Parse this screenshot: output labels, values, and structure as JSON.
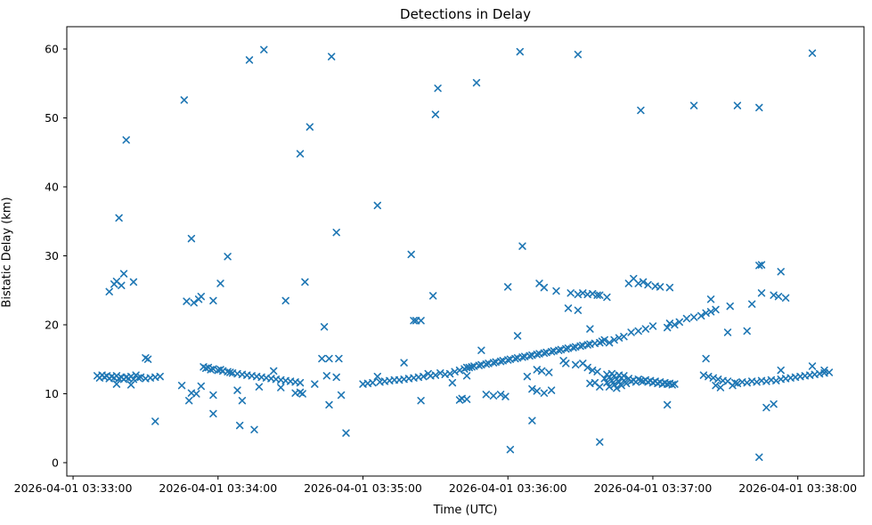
{
  "figure": {
    "title": "Detections in Delay",
    "xlabel": "Time (UTC)",
    "ylabel": "Bistatic Delay (km)"
  },
  "chart_data": {
    "type": "scatter",
    "title": "Detections in Delay",
    "xlabel": "Time (UTC)",
    "ylabel": "Bistatic Delay (km)",
    "date": "2026-04-01",
    "marker": "x",
    "marker_color": "#1f77b4",
    "grid": false,
    "legend": null,
    "x_tick_labels": [
      "2026-04-01 03:33:00",
      "2026-04-01 03:34:00",
      "2026-04-01 03:35:00",
      "2026-04-01 03:36:00",
      "2026-04-01 03:37:00",
      "2026-04-01 03:38:00"
    ],
    "x_tick_seconds": [
      0,
      60,
      120,
      180,
      240,
      300
    ],
    "y_ticks": [
      0,
      10,
      20,
      30,
      40,
      50,
      60
    ],
    "x_axis_seconds_range": [
      -2.6,
      327.4
    ],
    "y_axis_range": [
      -1.94,
      63.23
    ],
    "points": [
      [
        "03:33:10",
        12.6
      ],
      [
        "03:33:11",
        12.3
      ],
      [
        "03:33:12",
        12.7
      ],
      [
        "03:33:13",
        12.4
      ],
      [
        "03:33:14",
        12.6
      ],
      [
        "03:33:15",
        12.2
      ],
      [
        "03:33:16",
        12.5
      ],
      [
        "03:33:17",
        12.3
      ],
      [
        "03:33:18",
        11.4
      ],
      [
        "03:33:18",
        12.6
      ],
      [
        "03:33:19",
        12.2
      ],
      [
        "03:33:20",
        12.4
      ],
      [
        "03:33:21",
        12.1
      ],
      [
        "03:33:22",
        12.4
      ],
      [
        "03:33:23",
        12.2
      ],
      [
        "03:33:24",
        11.3
      ],
      [
        "03:33:24",
        12.5
      ],
      [
        "03:33:25",
        12.1
      ],
      [
        "03:33:26",
        12.7
      ],
      [
        "03:33:27",
        12.3
      ],
      [
        "03:33:28",
        12.4
      ],
      [
        "03:33:30",
        12.2
      ],
      [
        "03:33:32",
        12.3
      ],
      [
        "03:33:34",
        12.4
      ],
      [
        "03:33:36",
        12.5
      ],
      [
        "03:33:15",
        24.8
      ],
      [
        "03:33:17",
        25.9
      ],
      [
        "03:33:18",
        26.3
      ],
      [
        "03:33:20",
        25.7
      ],
      [
        "03:33:21",
        27.4
      ],
      [
        "03:33:25",
        26.2
      ],
      [
        "03:33:19",
        35.5
      ],
      [
        "03:33:22",
        46.8
      ],
      [
        "03:33:30",
        15.2
      ],
      [
        "03:33:31",
        15.0
      ],
      [
        "03:33:34",
        6.0
      ],
      [
        "03:33:46",
        52.6
      ],
      [
        "03:33:49",
        32.5
      ],
      [
        "03:33:47",
        23.4
      ],
      [
        "03:33:50",
        23.2
      ],
      [
        "03:33:52",
        23.7
      ],
      [
        "03:33:53",
        24.1
      ],
      [
        "03:33:58",
        23.5
      ],
      [
        "03:33:45",
        11.2
      ],
      [
        "03:33:48",
        9.0
      ],
      [
        "03:33:49",
        10.1
      ],
      [
        "03:33:51",
        10.0
      ],
      [
        "03:33:53",
        11.1
      ],
      [
        "03:33:58",
        9.8
      ],
      [
        "03:33:58",
        7.1
      ],
      [
        "03:33:54",
        13.9
      ],
      [
        "03:33:55",
        13.7
      ],
      [
        "03:33:56",
        13.8
      ],
      [
        "03:33:57",
        13.5
      ],
      [
        "03:33:58",
        13.6
      ],
      [
        "03:34:00",
        13.4
      ],
      [
        "03:34:01",
        13.5
      ],
      [
        "03:34:02",
        13.3
      ],
      [
        "03:34:04",
        13.2
      ],
      [
        "03:34:05",
        13.1
      ],
      [
        "03:34:06",
        13.0
      ],
      [
        "03:34:08",
        12.9
      ],
      [
        "03:34:10",
        12.8
      ],
      [
        "03:34:12",
        12.7
      ],
      [
        "03:34:14",
        12.6
      ],
      [
        "03:34:16",
        12.5
      ],
      [
        "03:34:18",
        12.4
      ],
      [
        "03:34:20",
        12.3
      ],
      [
        "03:34:22",
        12.2
      ],
      [
        "03:34:24",
        12.1
      ],
      [
        "03:34:26",
        12.0
      ],
      [
        "03:34:28",
        11.9
      ],
      [
        "03:34:30",
        11.8
      ],
      [
        "03:34:32",
        11.7
      ],
      [
        "03:34:34",
        11.6
      ],
      [
        "03:34:01",
        26.0
      ],
      [
        "03:34:04",
        29.9
      ],
      [
        "03:34:08",
        10.5
      ],
      [
        "03:34:09",
        5.4
      ],
      [
        "03:34:10",
        9.0
      ],
      [
        "03:34:13",
        58.4
      ],
      [
        "03:34:15",
        4.8
      ],
      [
        "03:34:17",
        11.0
      ],
      [
        "03:34:19",
        59.9
      ],
      [
        "03:34:23",
        13.3
      ],
      [
        "03:34:26",
        10.9
      ],
      [
        "03:34:28",
        23.5
      ],
      [
        "03:34:32",
        10.1
      ],
      [
        "03:34:34",
        10.2
      ],
      [
        "03:34:35",
        10.0
      ],
      [
        "03:34:34",
        44.8
      ],
      [
        "03:34:36",
        26.2
      ],
      [
        "03:34:38",
        48.7
      ],
      [
        "03:34:40",
        11.4
      ],
      [
        "03:34:43",
        15.1
      ],
      [
        "03:34:44",
        19.7
      ],
      [
        "03:34:45",
        12.6
      ],
      [
        "03:34:46",
        8.4
      ],
      [
        "03:34:46",
        15.1
      ],
      [
        "03:34:47",
        58.9
      ],
      [
        "03:34:49",
        12.4
      ],
      [
        "03:34:49",
        33.4
      ],
      [
        "03:34:50",
        15.1
      ],
      [
        "03:34:51",
        9.8
      ],
      [
        "03:34:53",
        4.3
      ],
      [
        "03:35:00",
        11.4
      ],
      [
        "03:35:02",
        11.5
      ],
      [
        "03:35:04",
        11.6
      ],
      [
        "03:35:06",
        12.5
      ],
      [
        "03:35:07",
        11.7
      ],
      [
        "03:35:09",
        11.8
      ],
      [
        "03:35:11",
        11.9
      ],
      [
        "03:35:13",
        12.0
      ],
      [
        "03:35:15",
        12.0
      ],
      [
        "03:35:17",
        12.1
      ],
      [
        "03:35:19",
        12.2
      ],
      [
        "03:35:21",
        12.3
      ],
      [
        "03:35:23",
        12.4
      ],
      [
        "03:35:25",
        12.5
      ],
      [
        "03:35:27",
        12.9
      ],
      [
        "03:35:28",
        12.6
      ],
      [
        "03:35:30",
        12.7
      ],
      [
        "03:35:32",
        13.0
      ],
      [
        "03:35:34",
        12.8
      ],
      [
        "03:35:36",
        12.9
      ],
      [
        "03:35:38",
        13.2
      ],
      [
        "03:35:40",
        13.4
      ],
      [
        "03:35:42",
        13.6
      ],
      [
        "03:35:44",
        13.8
      ],
      [
        "03:35:17",
        14.5
      ],
      [
        "03:35:37",
        11.6
      ],
      [
        "03:35:24",
        9.0
      ],
      [
        "03:35:40",
        9.1
      ],
      [
        "03:35:41",
        9.3
      ],
      [
        "03:35:43",
        9.2
      ],
      [
        "03:35:06",
        37.3
      ],
      [
        "03:35:20",
        30.2
      ],
      [
        "03:35:21",
        20.6
      ],
      [
        "03:35:22",
        20.6
      ],
      [
        "03:35:24",
        20.6
      ],
      [
        "03:35:29",
        24.2
      ],
      [
        "03:35:30",
        50.5
      ],
      [
        "03:35:31",
        54.3
      ],
      [
        "03:35:47",
        55.1
      ],
      [
        "03:35:49",
        16.3
      ],
      [
        "03:35:43",
        12.6
      ],
      [
        "03:35:43",
        13.8
      ],
      [
        "03:35:45",
        13.9
      ],
      [
        "03:35:46",
        14.0
      ],
      [
        "03:35:48",
        14.1
      ],
      [
        "03:35:49",
        14.2
      ],
      [
        "03:35:51",
        14.3
      ],
      [
        "03:35:52",
        14.4
      ],
      [
        "03:35:54",
        14.5
      ],
      [
        "03:35:55",
        14.6
      ],
      [
        "03:35:57",
        14.7
      ],
      [
        "03:35:58",
        14.8
      ],
      [
        "03:36:00",
        14.9
      ],
      [
        "03:36:01",
        15.0
      ],
      [
        "03:36:03",
        15.1
      ],
      [
        "03:36:04",
        15.2
      ],
      [
        "03:36:06",
        15.3
      ],
      [
        "03:36:07",
        15.4
      ],
      [
        "03:36:09",
        15.5
      ],
      [
        "03:36:10",
        15.6
      ],
      [
        "03:36:12",
        15.7
      ],
      [
        "03:36:13",
        15.8
      ],
      [
        "03:36:15",
        15.9
      ],
      [
        "03:36:16",
        16.0
      ],
      [
        "03:36:18",
        16.1
      ],
      [
        "03:36:19",
        16.2
      ],
      [
        "03:36:21",
        16.3
      ],
      [
        "03:36:22",
        16.4
      ],
      [
        "03:36:24",
        16.5
      ],
      [
        "03:36:25",
        16.6
      ],
      [
        "03:36:27",
        16.7
      ],
      [
        "03:36:28",
        16.8
      ],
      [
        "03:36:30",
        16.9
      ],
      [
        "03:36:31",
        17.0
      ],
      [
        "03:36:33",
        17.1
      ],
      [
        "03:36:34",
        17.2
      ],
      [
        "03:36:36",
        17.3
      ],
      [
        "03:36:38",
        17.4
      ],
      [
        "03:35:51",
        9.9
      ],
      [
        "03:35:54",
        9.7
      ],
      [
        "03:35:57",
        9.9
      ],
      [
        "03:35:59",
        9.6
      ],
      [
        "03:36:00",
        25.5
      ],
      [
        "03:36:01",
        1.9
      ],
      [
        "03:36:04",
        18.4
      ],
      [
        "03:36:05",
        59.6
      ],
      [
        "03:36:06",
        31.4
      ],
      [
        "03:36:08",
        12.5
      ],
      [
        "03:36:10",
        6.1
      ],
      [
        "03:36:10",
        10.7
      ],
      [
        "03:36:12",
        10.4
      ],
      [
        "03:36:12",
        13.5
      ],
      [
        "03:36:13",
        26.0
      ],
      [
        "03:36:14",
        13.3
      ],
      [
        "03:36:15",
        10.1
      ],
      [
        "03:36:15",
        25.4
      ],
      [
        "03:36:17",
        13.1
      ],
      [
        "03:36:18",
        10.5
      ],
      [
        "03:36:20",
        24.9
      ],
      [
        "03:36:23",
        14.8
      ],
      [
        "03:36:24",
        14.4
      ],
      [
        "03:36:25",
        22.4
      ],
      [
        "03:36:26",
        24.6
      ],
      [
        "03:36:28",
        14.2
      ],
      [
        "03:36:29",
        22.1
      ],
      [
        "03:36:29",
        24.4
      ],
      [
        "03:36:29",
        59.2
      ],
      [
        "03:36:31",
        14.4
      ],
      [
        "03:36:31",
        24.6
      ],
      [
        "03:36:33",
        24.4
      ],
      [
        "03:36:33",
        13.8
      ],
      [
        "03:36:34",
        19.4
      ],
      [
        "03:36:34",
        11.5
      ],
      [
        "03:36:35",
        13.4
      ],
      [
        "03:36:35",
        24.5
      ],
      [
        "03:36:36",
        11.6
      ],
      [
        "03:36:37",
        13.2
      ],
      [
        "03:36:37",
        24.3
      ],
      [
        "03:36:38",
        11.0
      ],
      [
        "03:36:38",
        3.0
      ],
      [
        "03:36:38",
        24.3
      ],
      [
        "03:36:41",
        24.0
      ],
      [
        "03:36:40",
        12.2
      ],
      [
        "03:36:41",
        11.6
      ],
      [
        "03:36:41",
        12.8
      ],
      [
        "03:36:42",
        11.0
      ],
      [
        "03:36:42",
        12.4
      ],
      [
        "03:36:43",
        11.9
      ],
      [
        "03:36:43",
        12.9
      ],
      [
        "03:36:44",
        11.3
      ],
      [
        "03:36:44",
        12.6
      ],
      [
        "03:36:45",
        10.8
      ],
      [
        "03:36:45",
        12.1
      ],
      [
        "03:36:46",
        11.7
      ],
      [
        "03:36:46",
        12.7
      ],
      [
        "03:36:47",
        11.2
      ],
      [
        "03:36:47",
        12.3
      ],
      [
        "03:36:48",
        11.9
      ],
      [
        "03:36:48",
        12.6
      ],
      [
        "03:36:49",
        11.5
      ],
      [
        "03:36:50",
        12.2
      ],
      [
        "03:36:51",
        11.8
      ],
      [
        "03:36:52",
        12.0
      ],
      [
        "03:36:53",
        11.7
      ],
      [
        "03:36:54",
        12.1
      ],
      [
        "03:36:55",
        11.9
      ],
      [
        "03:36:56",
        11.8
      ],
      [
        "03:36:57",
        12.0
      ],
      [
        "03:36:58",
        11.7
      ],
      [
        "03:36:59",
        11.9
      ],
      [
        "03:37:00",
        11.6
      ],
      [
        "03:37:01",
        11.8
      ],
      [
        "03:37:02",
        11.5
      ],
      [
        "03:37:03",
        11.7
      ],
      [
        "03:37:04",
        11.4
      ],
      [
        "03:37:05",
        11.6
      ],
      [
        "03:37:06",
        11.4
      ],
      [
        "03:37:07",
        11.5
      ],
      [
        "03:37:08",
        11.3
      ],
      [
        "03:37:09",
        11.4
      ],
      [
        "03:36:39",
        17.6
      ],
      [
        "03:36:40",
        17.8
      ],
      [
        "03:36:42",
        17.4
      ],
      [
        "03:36:44",
        17.8
      ],
      [
        "03:36:46",
        18.1
      ],
      [
        "03:36:48",
        18.3
      ],
      [
        "03:36:51",
        18.9
      ],
      [
        "03:36:54",
        19.1
      ],
      [
        "03:36:57",
        19.4
      ],
      [
        "03:37:00",
        19.8
      ],
      [
        "03:37:06",
        19.6
      ],
      [
        "03:37:07",
        20.2
      ],
      [
        "03:37:09",
        20.0
      ],
      [
        "03:37:11",
        20.4
      ],
      [
        "03:37:14",
        20.9
      ],
      [
        "03:37:17",
        21.1
      ],
      [
        "03:37:20",
        21.3
      ],
      [
        "03:37:22",
        21.7
      ],
      [
        "03:37:24",
        21.9
      ],
      [
        "03:37:26",
        22.2
      ],
      [
        "03:36:50",
        26.0
      ],
      [
        "03:36:52",
        26.7
      ],
      [
        "03:36:54",
        26.0
      ],
      [
        "03:36:56",
        26.2
      ],
      [
        "03:36:58",
        25.8
      ],
      [
        "03:37:01",
        25.6
      ],
      [
        "03:37:03",
        25.5
      ],
      [
        "03:37:07",
        25.4
      ],
      [
        "03:36:55",
        51.1
      ],
      [
        "03:37:06",
        8.4
      ],
      [
        "03:37:17",
        51.8
      ],
      [
        "03:37:22",
        15.1
      ],
      [
        "03:37:24",
        23.7
      ],
      [
        "03:37:31",
        18.9
      ],
      [
        "03:37:32",
        22.7
      ],
      [
        "03:37:35",
        51.8
      ],
      [
        "03:37:39",
        19.1
      ],
      [
        "03:37:41",
        23.0
      ],
      [
        "03:37:44",
        51.5
      ],
      [
        "03:37:44",
        28.6
      ],
      [
        "03:37:45",
        28.7
      ],
      [
        "03:37:44",
        0.8
      ],
      [
        "03:37:45",
        24.6
      ],
      [
        "03:37:47",
        8.0
      ],
      [
        "03:37:50",
        8.5
      ],
      [
        "03:37:50",
        24.3
      ],
      [
        "03:37:52",
        24.1
      ],
      [
        "03:37:55",
        23.9
      ],
      [
        "03:37:53",
        27.7
      ],
      [
        "03:38:06",
        59.4
      ],
      [
        "03:37:21",
        12.7
      ],
      [
        "03:37:23",
        12.5
      ],
      [
        "03:37:25",
        12.3
      ],
      [
        "03:37:26",
        11.2
      ],
      [
        "03:37:27",
        12.1
      ],
      [
        "03:37:28",
        10.9
      ],
      [
        "03:37:29",
        11.9
      ],
      [
        "03:37:31",
        11.8
      ],
      [
        "03:37:33",
        11.2
      ],
      [
        "03:37:34",
        11.6
      ],
      [
        "03:37:35",
        11.5
      ],
      [
        "03:37:37",
        11.7
      ],
      [
        "03:37:39",
        11.6
      ],
      [
        "03:37:41",
        11.8
      ],
      [
        "03:37:43",
        11.7
      ],
      [
        "03:37:45",
        11.9
      ],
      [
        "03:37:47",
        11.8
      ],
      [
        "03:37:49",
        12.0
      ],
      [
        "03:37:51",
        11.9
      ],
      [
        "03:37:53",
        12.1
      ],
      [
        "03:37:53",
        13.4
      ],
      [
        "03:37:55",
        12.2
      ],
      [
        "03:37:57",
        12.3
      ],
      [
        "03:37:59",
        12.4
      ],
      [
        "03:38:01",
        12.5
      ],
      [
        "03:38:03",
        12.6
      ],
      [
        "03:38:05",
        12.7
      ],
      [
        "03:38:06",
        14.0
      ],
      [
        "03:38:07",
        12.8
      ],
      [
        "03:38:09",
        12.9
      ],
      [
        "03:38:11",
        13.4
      ],
      [
        "03:38:11",
        13.0
      ],
      [
        "03:38:13",
        13.1
      ]
    ]
  }
}
